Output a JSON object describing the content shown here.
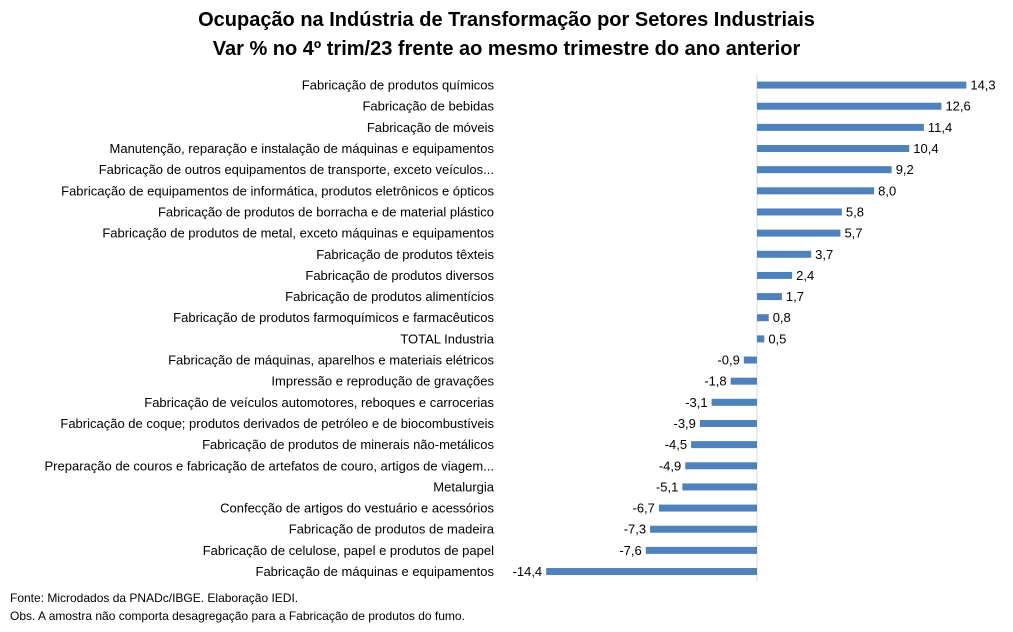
{
  "chart_data": {
    "type": "bar",
    "orientation": "horizontal",
    "title": "Ocupação na Indústria de Transformação por Setores Industriais",
    "subtitle": "Var % no 4º trim/23 frente ao mesmo trimestre do ano anterior",
    "categories": [
      "Fabricação de produtos químicos",
      "Fabricação de bebidas",
      "Fabricação de móveis",
      "Manutenção, reparação e instalação de máquinas e equipamentos",
      "Fabricação de outros equipamentos de transporte, exceto veículos...",
      "Fabricação de equipamentos de informática, produtos eletrônicos e ópticos",
      "Fabricação de produtos de borracha e de material plástico",
      "Fabricação de produtos de metal, exceto máquinas e equipamentos",
      "Fabricação de produtos têxteis",
      "Fabricação de produtos diversos",
      "Fabricação de produtos alimentícios",
      "Fabricação de produtos farmoquímicos e farmacêuticos",
      "TOTAL Industria",
      "Fabricação de máquinas, aparelhos e materiais elétricos",
      "Impressão e reprodução de gravações",
      "Fabricação de veículos automotores, reboques e carrocerias",
      "Fabricação de coque; produtos derivados de petróleo e de biocombustíveis",
      "Fabricação de produtos de minerais não-metálicos",
      "Preparação de couros e fabricação de artefatos de couro, artigos de viagem...",
      "Metalurgia",
      "Confecção de artigos do vestuário e acessórios",
      "Fabricação de produtos de madeira",
      "Fabricação de celulose, papel e produtos de papel",
      "Fabricação de máquinas e equipamentos"
    ],
    "values": [
      14.3,
      12.6,
      11.4,
      10.4,
      9.2,
      8.0,
      5.8,
      5.7,
      3.7,
      2.4,
      1.7,
      0.8,
      0.5,
      -0.9,
      -1.8,
      -3.1,
      -3.9,
      -4.5,
      -4.9,
      -5.1,
      -6.7,
      -7.3,
      -7.6,
      -14.4
    ],
    "value_labels": [
      "14,3",
      "12,6",
      "11,4",
      "10,4",
      "9,2",
      "8,0",
      "5,8",
      "5,7",
      "3,7",
      "2,4",
      "1,7",
      "0,8",
      "0,5",
      "-0,9",
      "-1,8",
      "-3,1",
      "-3,9",
      "-4,5",
      "-4,9",
      "-5,1",
      "-6,7",
      "-7,3",
      "-7,6",
      "-14,4"
    ],
    "xlim": [
      -14.4,
      14.3
    ],
    "bar_color": "#4f81bd",
    "axis_color": "#d9d9d9",
    "grid": false,
    "legend": "none"
  },
  "footer": {
    "source": "Fonte: Microdados da PNADc/IBGE. Elaboração IEDI.",
    "note": "Obs. A amostra não comporta desagregação para a Fabricação de produtos do fumo."
  }
}
